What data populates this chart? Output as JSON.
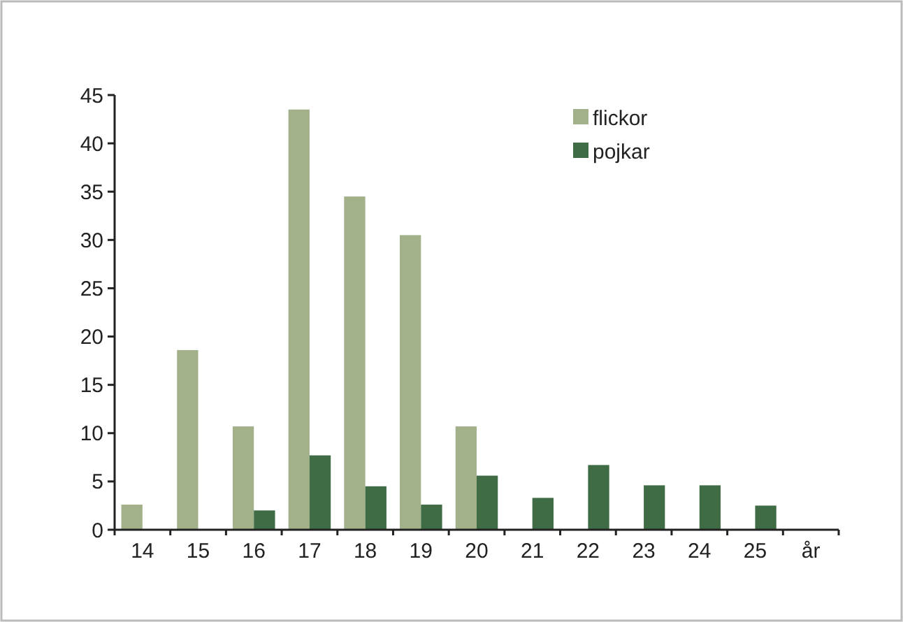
{
  "chart_data": {
    "type": "bar",
    "categories": [
      "14",
      "15",
      "16",
      "17",
      "18",
      "19",
      "20",
      "21",
      "22",
      "23",
      "24",
      "25",
      "år"
    ],
    "series": [
      {
        "name": "flickor",
        "color": "#a3b18a",
        "values": [
          2.6,
          18.6,
          10.7,
          43.5,
          34.5,
          30.5,
          10.7,
          null,
          null,
          null,
          null,
          null,
          null
        ]
      },
      {
        "name": "pojkar",
        "color": "#3f6b45",
        "values": [
          null,
          null,
          2.0,
          7.7,
          4.5,
          2.6,
          5.6,
          3.3,
          6.7,
          4.6,
          4.6,
          2.5,
          null
        ]
      }
    ],
    "ylim": [
      0,
      45
    ],
    "yticks": [
      0,
      5,
      10,
      15,
      20,
      25,
      30,
      35,
      40,
      45
    ],
    "grid": false,
    "legend": "top right"
  }
}
